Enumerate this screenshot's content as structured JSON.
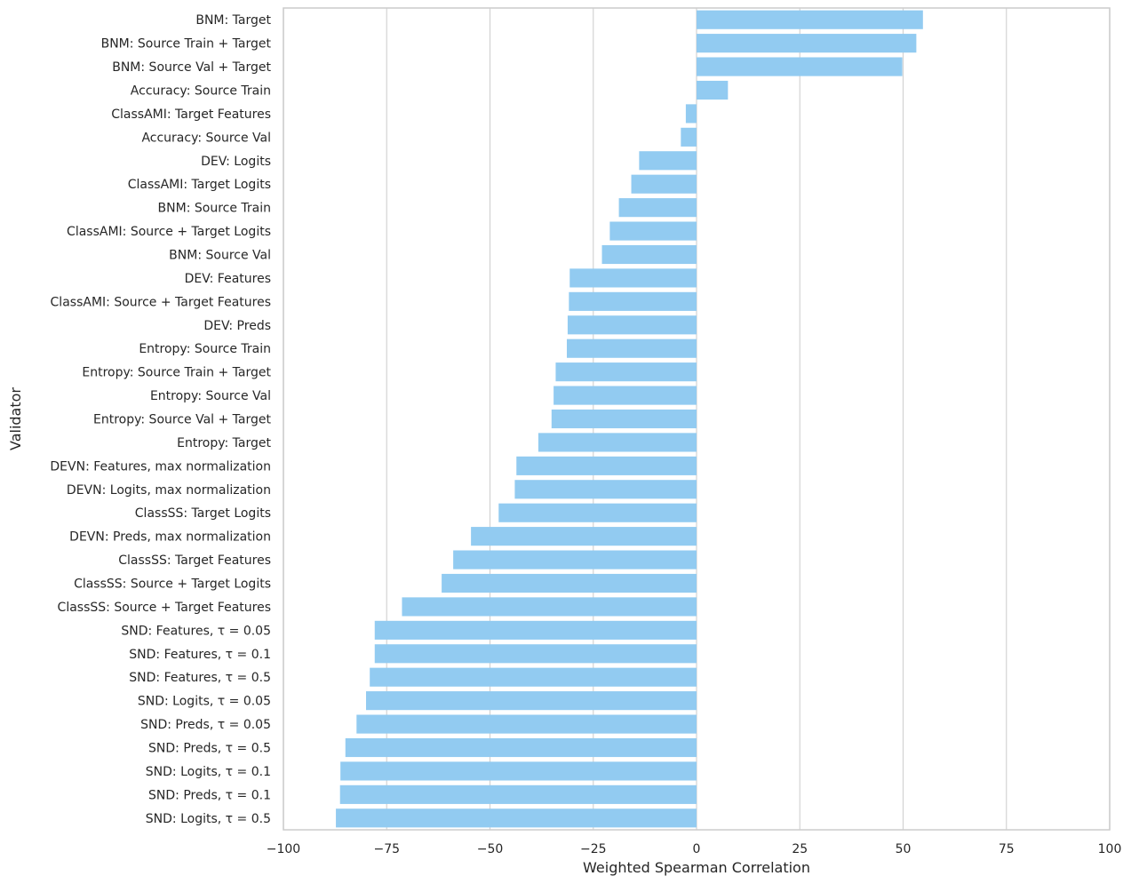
{
  "chart_data": {
    "type": "bar",
    "orientation": "horizontal",
    "xlabel": "Weighted Spearman Correlation",
    "ylabel": "Validator",
    "xlim": [
      -100,
      100
    ],
    "xticks": [
      -100,
      -75,
      -50,
      -25,
      0,
      25,
      50,
      75,
      100
    ],
    "xtick_labels": [
      "−100",
      "−75",
      "−50",
      "−25",
      "0",
      "25",
      "50",
      "75",
      "100"
    ],
    "grid": "vertical",
    "bar_color": "#92cbf1",
    "categories": [
      "BNM: Target",
      "BNM: Source Train + Target",
      "BNM: Source Val + Target",
      "Accuracy: Source Train",
      "ClassAMI: Target Features",
      "Accuracy: Source Val",
      "DEV: Logits",
      "ClassAMI: Target Logits",
      "BNM: Source Train",
      "ClassAMI: Source + Target Logits",
      "BNM: Source Val",
      "DEV: Features",
      "ClassAMI: Source + Target Features",
      "DEV: Preds",
      "Entropy: Source Train",
      "Entropy: Source Train + Target",
      "Entropy: Source Val",
      "Entropy: Source Val + Target",
      "Entropy: Target",
      "DEVN: Features, max normalization",
      "DEVN: Logits, max normalization",
      "ClassSS: Target Logits",
      "DEVN: Preds, max normalization",
      "ClassSS: Target Features",
      "ClassSS: Source + Target Logits",
      "ClassSS: Source + Target Features",
      "SND: Features, τ = 0.05",
      "SND: Features, τ = 0.1",
      "SND: Features, τ = 0.5",
      "SND: Logits, τ = 0.05",
      "SND: Preds, τ = 0.05",
      "SND: Preds, τ = 0.5",
      "SND: Logits, τ = 0.1",
      "SND: Preds, τ = 0.1",
      "SND: Logits, τ = 0.5"
    ],
    "values": [
      54.8,
      53.2,
      49.8,
      7.6,
      -2.6,
      -3.8,
      -13.9,
      -15.8,
      -18.8,
      -21.0,
      -22.9,
      -30.7,
      -30.9,
      -31.2,
      -31.4,
      -34.1,
      -34.6,
      -35.1,
      -38.3,
      -43.6,
      -44.0,
      -47.9,
      -54.6,
      -58.9,
      -61.7,
      -71.3,
      -77.9,
      -77.9,
      -79.1,
      -80.0,
      -82.3,
      -85.0,
      -86.2,
      -86.3,
      -87.3
    ]
  }
}
